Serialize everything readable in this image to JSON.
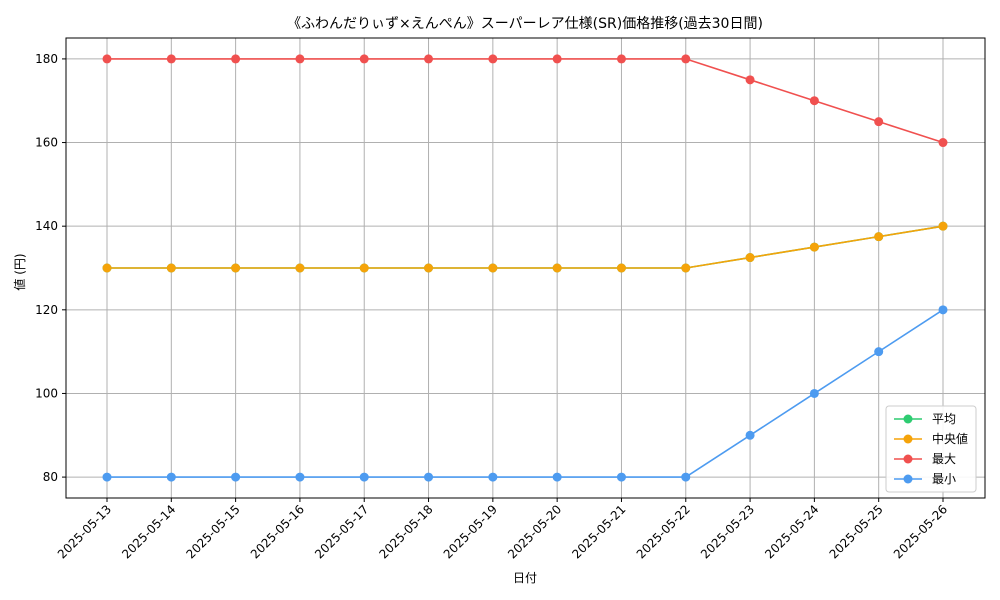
{
  "chart_data": {
    "type": "line",
    "title": "《ふわんだりぃず×えんぺん》スーパーレア仕様(SR)価格推移(過去30日間)",
    "xlabel": "日付",
    "ylabel": "値 (円)",
    "ylim": [
      75,
      185
    ],
    "yticks": [
      80,
      100,
      120,
      140,
      160,
      180
    ],
    "grid": true,
    "legend_position": "bottom-right",
    "categories": [
      "2025-05-13",
      "2025-05-14",
      "2025-05-15",
      "2025-05-16",
      "2025-05-17",
      "2025-05-18",
      "2025-05-19",
      "2025-05-20",
      "2025-05-21",
      "2025-05-22",
      "2025-05-23",
      "2025-05-24",
      "2025-05-25",
      "2025-05-26"
    ],
    "series": [
      {
        "name": "平均",
        "color": "#2ecc71",
        "values": [
          130,
          130,
          130,
          130,
          130,
          130,
          130,
          130,
          130,
          130,
          132.5,
          135,
          137.5,
          140
        ]
      },
      {
        "name": "中央値",
        "color": "#f5a30a",
        "values": [
          130,
          130,
          130,
          130,
          130,
          130,
          130,
          130,
          130,
          130,
          132.5,
          135,
          137.5,
          140
        ]
      },
      {
        "name": "最大",
        "color": "#f0504f",
        "values": [
          180,
          180,
          180,
          180,
          180,
          180,
          180,
          180,
          180,
          180,
          175,
          170,
          165,
          160
        ]
      },
      {
        "name": "最小",
        "color": "#4d9bf0",
        "values": [
          80,
          80,
          80,
          80,
          80,
          80,
          80,
          80,
          80,
          80,
          90,
          100,
          110,
          120
        ]
      }
    ]
  }
}
